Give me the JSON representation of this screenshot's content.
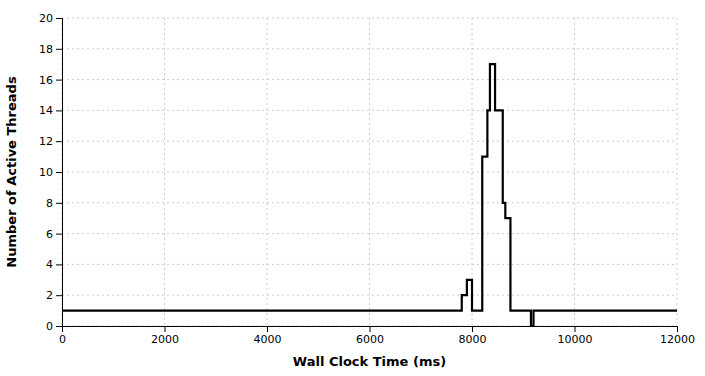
{
  "chart_data": {
    "type": "line",
    "xlabel": "Wall Clock Time (ms)",
    "ylabel": "Number of Active Threads",
    "x": [
      0,
      7800,
      7800,
      7900,
      7900,
      8000,
      8000,
      8200,
      8200,
      8300,
      8300,
      8350,
      8350,
      8450,
      8450,
      8600,
      8600,
      8650,
      8650,
      8750,
      8750,
      9150,
      9150,
      9200,
      9200,
      12000
    ],
    "values": [
      1,
      1,
      2,
      2,
      3,
      3,
      1,
      1,
      11,
      11,
      14,
      14,
      17,
      17,
      14,
      14,
      8,
      8,
      7,
      7,
      1,
      1,
      0,
      0,
      1,
      1
    ],
    "color": "#000000",
    "xlim": [
      0,
      12000
    ],
    "ylim": [
      0,
      20
    ],
    "xticks": [
      0,
      2000,
      4000,
      6000,
      8000,
      10000,
      12000
    ],
    "yticks": [
      0,
      2,
      4,
      6,
      8,
      10,
      12,
      14,
      16,
      18,
      20
    ],
    "grid": true
  }
}
